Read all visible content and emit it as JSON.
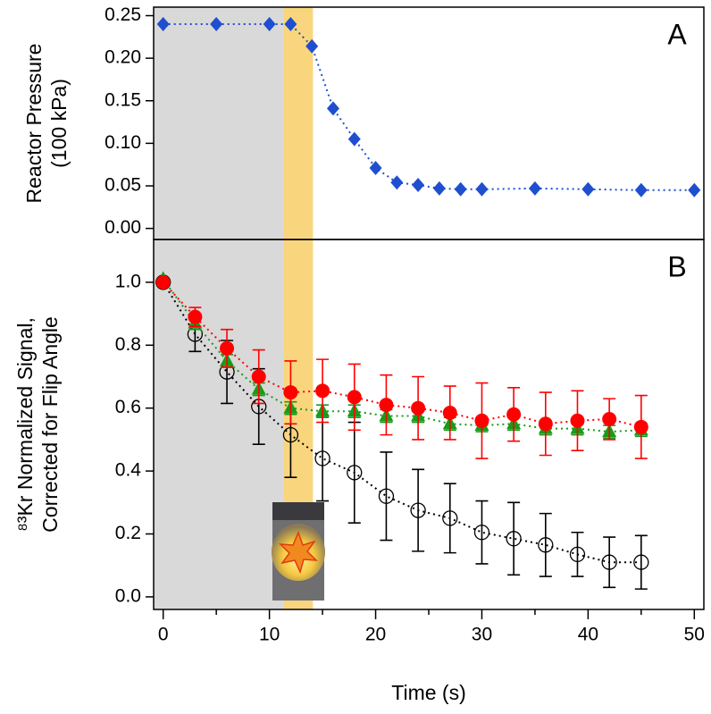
{
  "chart_data": [
    {
      "type": "line",
      "y_label": [
        "Reactor Pressure",
        "(100 kPa)"
      ],
      "annotation": "A",
      "x": [
        0,
        5,
        10,
        12,
        14,
        16,
        18,
        20,
        22,
        24,
        26,
        28,
        30,
        35,
        40,
        45,
        50
      ],
      "series": [
        {
          "color": "#1f4fd0",
          "marker": "diamond",
          "line_style": "dotted",
          "values": [
            0.24,
            0.24,
            0.24,
            0.24,
            0.214,
            0.141,
            0.105,
            0.071,
            0.054,
            0.051,
            0.047,
            0.046,
            0.046,
            0.047,
            0.046,
            0.045,
            0.045
          ]
        }
      ],
      "xlim": [
        -0.9,
        50.9
      ],
      "ylim": [
        -0.013,
        0.26
      ],
      "yticks": [
        {
          "value": 0,
          "label": "0.00"
        },
        0.05,
        {
          "value": 0.1,
          "label": "0.10"
        },
        0.15,
        {
          "value": 0.2,
          "label": "0.20"
        },
        0.25
      ],
      "shaded_regions": [
        {
          "xlim": [
            -0.9,
            11.3
          ],
          "color": "#d9d9d9"
        },
        {
          "xlim": [
            11.3,
            14.1
          ],
          "color": "#f9d67e"
        }
      ]
    },
    {
      "type": "line",
      "y_label": [
        "⁸³Kr Normalized Signal,",
        "Corrected for Flip Angle"
      ],
      "x_label": "Time (s)",
      "annotation": "B",
      "x": [
        0,
        3,
        6,
        9,
        12,
        15,
        18,
        21,
        24,
        27,
        30,
        33,
        36,
        39,
        42,
        45
      ],
      "series": [
        {
          "color": "#000000",
          "marker": "open-circle",
          "line_style": "dotted",
          "values": [
            1.0,
            0.835,
            0.715,
            0.605,
            0.515,
            0.44,
            0.395,
            0.32,
            0.275,
            0.25,
            0.205,
            0.185,
            0.165,
            0.135,
            0.11,
            0.11
          ],
          "errors": [
            0,
            0.055,
            0.1,
            0.12,
            0.135,
            0.135,
            0.16,
            0.14,
            0.13,
            0.11,
            0.1,
            0.115,
            0.1,
            0.07,
            0.08,
            0.085
          ]
        },
        {
          "color": "#1a9a1a",
          "marker": "triangle",
          "line_style": "dotted",
          "values": [
            1.01,
            0.87,
            0.75,
            0.66,
            0.6,
            0.59,
            0.59,
            0.575,
            0.575,
            0.55,
            0.545,
            0.55,
            0.535,
            0.535,
            0.525,
            0.53
          ],
          "errors": [
            0,
            0.02,
            0.02,
            0.02,
            0.02,
            0.02,
            0.02,
            0.02,
            0.02,
            0.02,
            0.02,
            0.02,
            0.02,
            0.02,
            0.02,
            0.02
          ]
        },
        {
          "color": "#ff0000",
          "marker": "circle",
          "line_style": "dotted",
          "values": [
            1.0,
            0.89,
            0.79,
            0.7,
            0.65,
            0.655,
            0.635,
            0.61,
            0.6,
            0.585,
            0.56,
            0.58,
            0.55,
            0.56,
            0.565,
            0.54
          ],
          "errors": [
            0,
            0.03,
            0.06,
            0.085,
            0.1,
            0.1,
            0.105,
            0.095,
            0.1,
            0.085,
            0.12,
            0.085,
            0.1,
            0.095,
            0.065,
            0.1
          ]
        }
      ],
      "xlim": [
        -0.9,
        50.9
      ],
      "ylim": [
        -0.04,
        1.136
      ],
      "xticks": [
        0,
        10,
        20,
        30,
        40,
        50
      ],
      "xminor_ticks": [
        5,
        15,
        25,
        35,
        45
      ],
      "yticks": [
        {
          "value": 0,
          "label": "0.0"
        },
        0.2,
        0.4,
        0.6,
        0.8,
        {
          "value": 1,
          "label": "1.0"
        }
      ],
      "shaded_regions": [
        {
          "xlim": [
            -0.9,
            11.3
          ],
          "color": "#d9d9d9"
        },
        {
          "xlim": [
            11.3,
            14.1
          ],
          "color": "#f9d67e"
        }
      ]
    }
  ]
}
